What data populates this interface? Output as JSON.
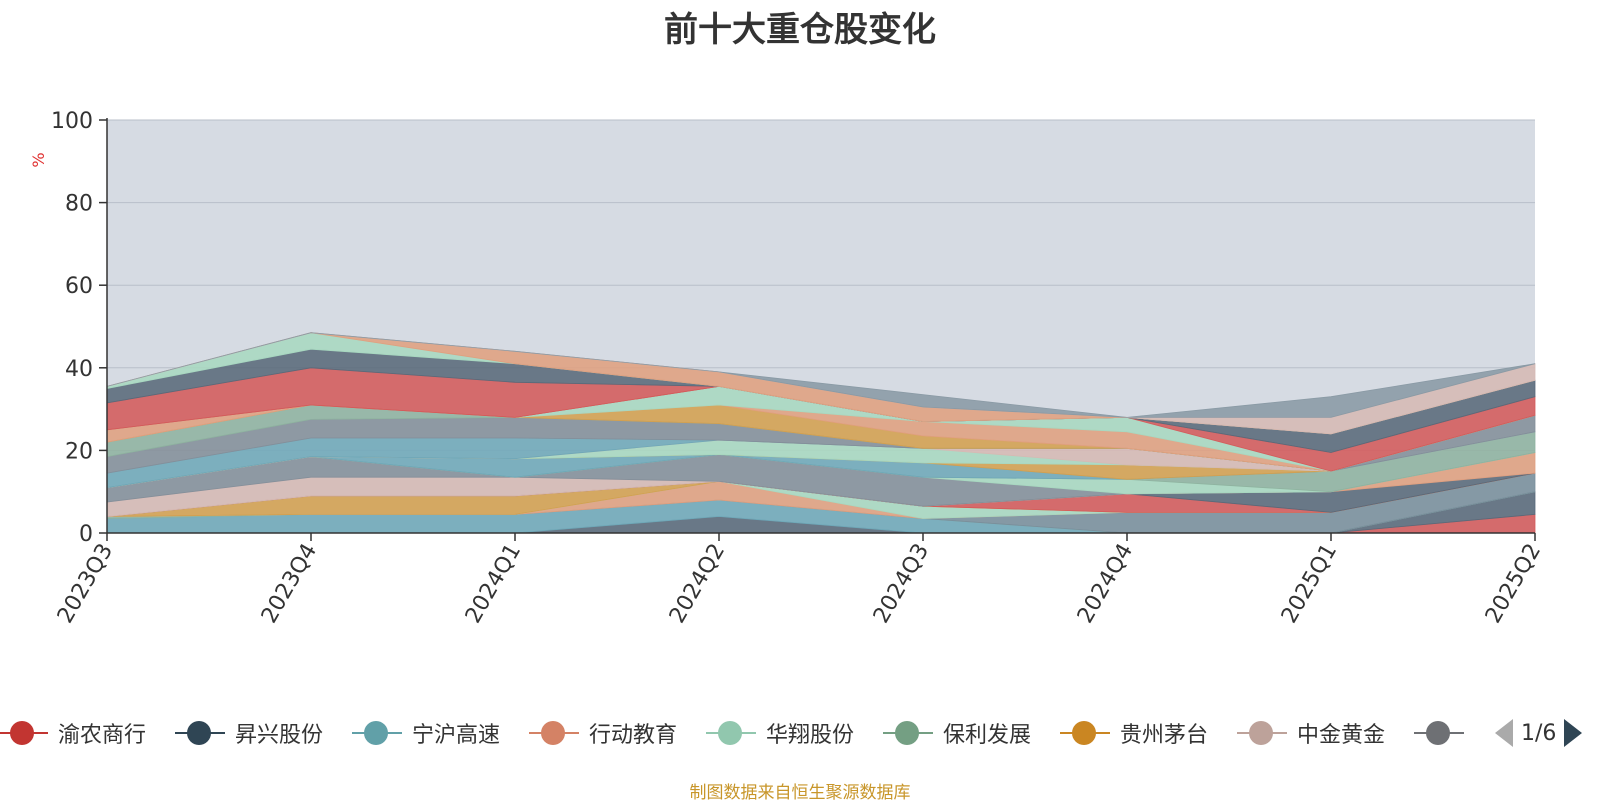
{
  "title": "前十大重仓股变化",
  "source_note": "制图数据来自恒生聚源数据库",
  "legend_page": "1/6",
  "chart_data": {
    "type": "area",
    "stacked": true,
    "title": "前十大重仓股变化",
    "ylabel": "%",
    "ylim": [
      0,
      100
    ],
    "yticks": [
      "0",
      "20",
      "40",
      "60",
      "80",
      "100"
    ],
    "categories": [
      "2023Q3",
      "2023Q4",
      "2024Q1",
      "2024Q2",
      "2024Q3",
      "2024Q4",
      "2025Q1",
      "2025Q2"
    ],
    "grid": true,
    "legend_position": "bottom",
    "plot_background": "#d6dbe3",
    "series": [
      {
        "name": null,
        "color": "#d45b5b",
        "values": [
          0,
          0,
          0,
          0,
          0,
          0,
          0,
          4.5
        ]
      },
      {
        "name": null,
        "color": "#5a6a7a",
        "values": [
          0,
          0,
          0,
          4.0,
          0,
          0,
          0,
          5.5
        ]
      },
      {
        "name": null,
        "color": "#6fa8b8",
        "values": [
          3.5,
          4.5,
          4.5,
          4.0,
          3.5,
          0,
          0,
          0
        ]
      },
      {
        "name": null,
        "color": "#8fb3a0",
        "values": [
          0.5,
          0,
          0,
          0,
          0,
          0,
          0,
          0
        ]
      },
      {
        "name": null,
        "color": "#7a8f9c",
        "values": [
          0,
          0,
          0,
          0,
          0,
          5.0,
          5.0,
          4.5
        ]
      },
      {
        "name": null,
        "color": "#e0a080",
        "values": [
          0,
          0,
          0,
          4.5,
          0,
          0,
          0,
          0
        ]
      },
      {
        "name": null,
        "color": "#a8d8c0",
        "values": [
          0,
          0,
          0,
          0,
          3.0,
          0,
          0,
          0
        ]
      },
      {
        "name": null,
        "color": "#d4a050",
        "values": [
          0,
          4.5,
          4.5,
          0,
          0,
          0,
          0,
          0
        ]
      },
      {
        "name": null,
        "color": "#d45b5b",
        "values": [
          0,
          0,
          0,
          0,
          0,
          4.5,
          0,
          0
        ]
      },
      {
        "name": null,
        "color": "#5a6a7a",
        "values": [
          0,
          0,
          0,
          0,
          0,
          0,
          5.0,
          0
        ]
      },
      {
        "name": null,
        "color": "#e0a080",
        "values": [
          0,
          0,
          0,
          0,
          0,
          0,
          0,
          5.0
        ]
      },
      {
        "name": null,
        "color": "#d6bab4",
        "values": [
          3.5,
          4.5,
          4.5,
          0,
          0,
          0,
          0,
          0
        ]
      },
      {
        "name": null,
        "color": "#848f9a",
        "values": [
          3.5,
          5.0,
          0,
          6.5,
          7.0,
          0,
          0,
          0
        ]
      },
      {
        "name": null,
        "color": "#a8d8c0",
        "values": [
          0,
          0,
          0,
          0,
          0,
          3.5,
          0,
          0
        ]
      },
      {
        "name": null,
        "color": "#8fb3a0",
        "values": [
          0,
          0,
          0,
          0,
          0,
          0,
          5.0,
          5.0
        ]
      },
      {
        "name": null,
        "color": "#6fa8b8",
        "values": [
          0,
          0,
          4.5,
          0,
          3.5,
          0,
          0,
          0
        ]
      },
      {
        "name": null,
        "color": "#d4a050",
        "values": [
          0,
          0,
          0,
          0,
          0,
          3.5,
          0,
          0
        ]
      },
      {
        "name": null,
        "color": "#a8d8c0",
        "values": [
          0,
          0,
          0,
          3.5,
          3.5,
          0,
          0,
          0
        ]
      },
      {
        "name": null,
        "color": "#d6bab4",
        "values": [
          0,
          0,
          0,
          0,
          0,
          4.0,
          0,
          0
        ]
      },
      {
        "name": null,
        "color": "#6fa8b8",
        "values": [
          3.5,
          4.5,
          5.0,
          0,
          0,
          0,
          0,
          0
        ]
      },
      {
        "name": null,
        "color": "#848f9a",
        "values": [
          4.0,
          4.5,
          5.0,
          4.0,
          0,
          0,
          0,
          4.0
        ]
      },
      {
        "name": null,
        "color": "#8fb3a0",
        "values": [
          3.5,
          3.5,
          0,
          0,
          0,
          0,
          0,
          0
        ]
      },
      {
        "name": null,
        "color": "#d4a050",
        "values": [
          0,
          0,
          0,
          4.5,
          3.0,
          0,
          0,
          0
        ]
      },
      {
        "name": null,
        "color": "#e0a080",
        "values": [
          3.0,
          0,
          0,
          0,
          3.5,
          4.0,
          0,
          0
        ]
      },
      {
        "name": null,
        "color": "#a8d8c0",
        "values": [
          0,
          0,
          0,
          4.5,
          0,
          3.5,
          0,
          0
        ]
      },
      {
        "name": null,
        "color": "#d45b5b",
        "values": [
          0,
          0,
          0,
          0,
          0,
          0,
          4.5,
          4.5
        ]
      },
      {
        "name": null,
        "color": "#d45b5b",
        "values": [
          6.5,
          9.0,
          8.5,
          0,
          0,
          0,
          0,
          0
        ]
      },
      {
        "name": null,
        "color": "#5a6a7a",
        "values": [
          3.5,
          4.5,
          4.5,
          0,
          0,
          0,
          4.5,
          4.0
        ]
      },
      {
        "name": null,
        "color": "#a8d8c0",
        "values": [
          0.5,
          4.0,
          0,
          0,
          0,
          0,
          0,
          0
        ]
      },
      {
        "name": null,
        "color": "#e0a080",
        "values": [
          0,
          0,
          3.0,
          3.5,
          3.5,
          0,
          0,
          0
        ]
      },
      {
        "name": null,
        "color": "#d6bab4",
        "values": [
          0,
          0,
          0,
          0,
          0,
          0,
          4.0,
          4.0
        ]
      },
      {
        "name": null,
        "color": "#8a9aa5",
        "values": [
          0,
          0,
          0,
          0,
          3.0,
          0,
          5.0,
          0
        ]
      }
    ],
    "legend_entries": [
      {
        "name": "渝农商行",
        "color": "#c23531"
      },
      {
        "name": "昇兴股份",
        "color": "#2f4554"
      },
      {
        "name": "宁沪高速",
        "color": "#61a0a8"
      },
      {
        "name": "行动教育",
        "color": "#d48265"
      },
      {
        "name": "华翔股份",
        "color": "#91c7ae"
      },
      {
        "name": "保利发展",
        "color": "#749f83"
      },
      {
        "name": "贵州茅台",
        "color": "#ca8622"
      },
      {
        "name": "中金黄金",
        "color": "#bda29a"
      },
      {
        "name": "",
        "color": "#6e7074"
      }
    ]
  }
}
